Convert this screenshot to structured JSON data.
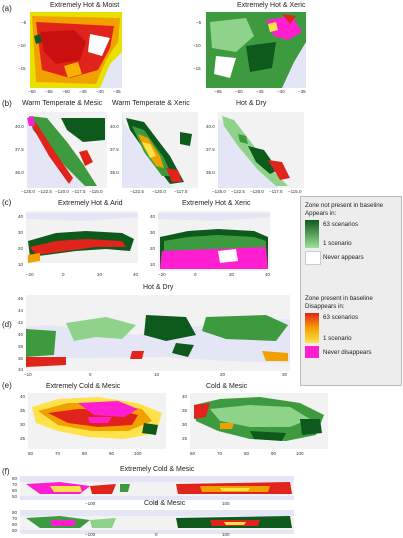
{
  "panel_labels": [
    "(a)",
    "(b)",
    "(c)",
    "(d)",
    "(e)",
    "(f)"
  ],
  "titles": {
    "a1": "Extremely Hot & Moist",
    "a2": "Extremely Hot & Xeric",
    "b1": "Warm Temperate & Mesic",
    "b2": "Warm Temperate & Xeric",
    "b3": "Hot & Dry",
    "c1": "Extremely Hot & Arid",
    "c2": "Extremely Hot & Xeric",
    "d1": "Hot & Dry",
    "e1": "Extremely Cold & Mesic",
    "e2": "Cold & Mesic",
    "f1": "Extremely Cold & Mesic",
    "f2": "Cold & Mesic"
  },
  "ticks": {
    "a_y": [
      "−5",
      "−10",
      "−15"
    ],
    "a1_x": [
      "−60",
      "−55",
      "−50",
      "−45",
      "−40",
      "−35"
    ],
    "a2_x": [
      "−55",
      "−50",
      "−45",
      "−40",
      "−35"
    ],
    "b_y": [
      "40.0",
      "37.5",
      "35.0"
    ],
    "b1_x": [
      "−125.0",
      "−122.5",
      "−120.0",
      "−117.5",
      "−115.0"
    ],
    "b2_x": [
      "−122.5",
      "−120.0",
      "−117.5"
    ],
    "b3_x": [
      "−125.0",
      "−122.5",
      "−120.0",
      "−117.5",
      "−115.0"
    ],
    "c_y": [
      "40",
      "30",
      "20",
      "10"
    ],
    "c1_x": [
      "−20",
      "0",
      "20",
      "40"
    ],
    "c2_x": [
      "−20",
      "0",
      "20",
      "40"
    ],
    "d_y": [
      "46",
      "44",
      "42",
      "40",
      "38",
      "36",
      "34"
    ],
    "d_x": [
      "−10",
      "0",
      "10",
      "20",
      "30"
    ],
    "e_y": [
      "40",
      "35",
      "30",
      "25"
    ],
    "e1_x": [
      "60",
      "70",
      "80",
      "90",
      "100"
    ],
    "e2_x": [
      "60",
      "70",
      "80",
      "90",
      "100"
    ],
    "f_y": [
      "80",
      "70",
      "60",
      "50"
    ],
    "f_x": [
      "−100",
      "0",
      "100"
    ]
  },
  "legend": {
    "title1": "Zone not present in baseline",
    "appears": "Appears in:",
    "g_top": "63 scenarios",
    "g_bot": "1 scenario",
    "never_appears": "Never appears",
    "title2": "Zone present in baseline",
    "disappears": "Disappears in:",
    "r_top": "63 scenarios",
    "r_bot": "1 scenario",
    "never_disappears": "Never disappears"
  },
  "colors": {
    "dark_green": "#0e5a1c",
    "light_green": "#8fd38a",
    "red": "#e0241b",
    "yellow": "#ffe14a",
    "magenta": "#ff1fd0",
    "map_bg": "#e4e6f6",
    "land": "#f2f2f2"
  }
}
